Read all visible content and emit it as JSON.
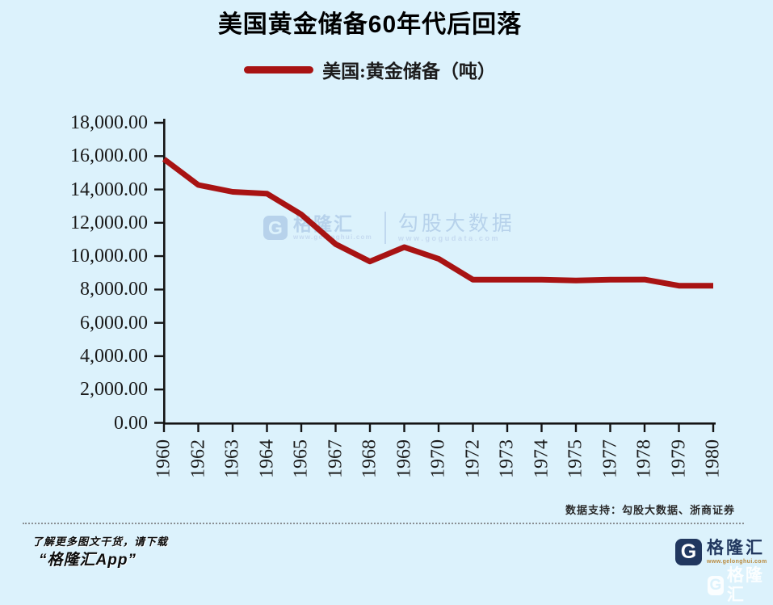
{
  "title": "美国黄金储备60年代后回落",
  "legend": {
    "label": "美国:黄金储备（吨）"
  },
  "chart_data": {
    "type": "line",
    "title": "美国黄金储备60年代后回落",
    "categories": [
      "1960",
      "1962",
      "1963",
      "1964",
      "1965",
      "1967",
      "1968",
      "1969",
      "1970",
      "1972",
      "1973",
      "1974",
      "1975",
      "1977",
      "1978",
      "1979",
      "1980"
    ],
    "series": [
      {
        "name": "美国:黄金储备（吨）",
        "color": "#a81313",
        "values": [
          15822,
          14269,
          13857,
          13750,
          12499,
          10722,
          9679,
          10539,
          9839,
          8584,
          8584,
          8584,
          8544,
          8588,
          8597,
          8229,
          8221
        ]
      }
    ],
    "ylim": [
      0,
      18000
    ],
    "y_tick_step": 2000,
    "y_tick_labels_top_down": [
      "18,000.00",
      "16,000.00",
      "14,000.00",
      "12,000.00",
      "10,000.00",
      "8,000.00",
      "6,000.00",
      "4,000.00",
      "2,000.00",
      "0.00"
    ],
    "xlabel": "",
    "ylabel": "",
    "grid": false,
    "legend_position": "top"
  },
  "watermark": {
    "icon_letter": "G",
    "brand": "格隆汇",
    "brand_url": "www.gelonghui.com",
    "partner": "勾股大数据",
    "partner_url": "www.gogudata.com"
  },
  "footer": {
    "data_support": "数据支持：勾股大数据、浙商证券",
    "promo_line1": "了解更多图文干货，请下载",
    "promo_line2": "“格隆汇App”",
    "logo_icon_letter": "G",
    "logo_text": "格隆汇",
    "logo_url": "www.gelonghui.com",
    "corner_logo_icon_letter": "G",
    "corner_logo_text": "格隆汇"
  },
  "colors": {
    "background": "#dcf2fc",
    "line": "#a81313",
    "brand_navy": "#21375f",
    "watermark_blue": "#b7d2eb",
    "axis_text": "#1a1a1a"
  }
}
